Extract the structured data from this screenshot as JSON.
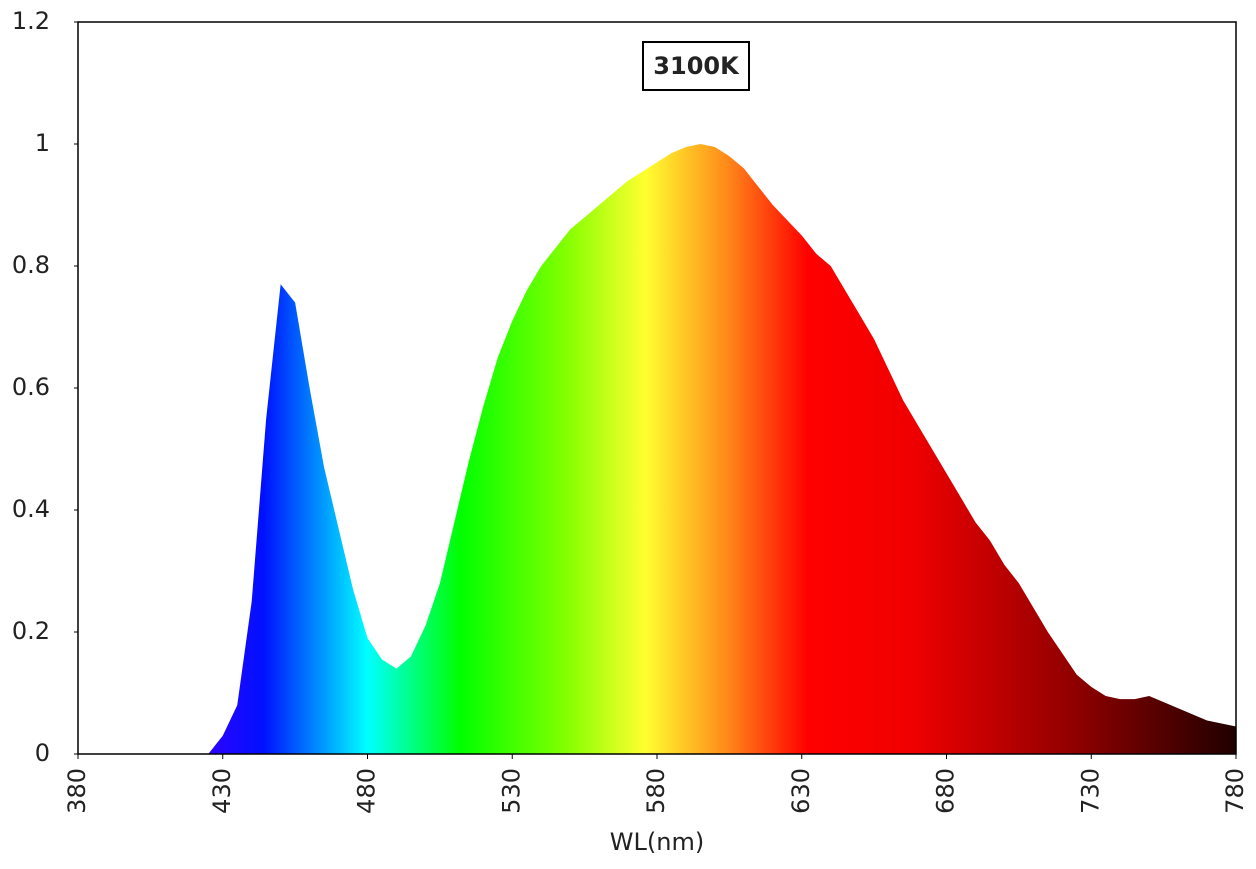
{
  "chart_data": {
    "type": "area",
    "title": "3100K",
    "xlabel": "WL(nm)",
    "x": [
      380,
      385,
      390,
      395,
      400,
      405,
      410,
      415,
      420,
      425,
      430,
      435,
      440,
      445,
      450,
      455,
      460,
      465,
      470,
      475,
      480,
      485,
      490,
      495,
      500,
      505,
      510,
      515,
      520,
      525,
      530,
      535,
      540,
      545,
      550,
      555,
      560,
      565,
      570,
      575,
      580,
      585,
      590,
      595,
      600,
      605,
      610,
      615,
      620,
      625,
      630,
      635,
      640,
      645,
      650,
      655,
      660,
      665,
      670,
      675,
      680,
      685,
      690,
      695,
      700,
      705,
      710,
      715,
      720,
      725,
      730,
      735,
      740,
      745,
      750,
      755,
      760,
      765,
      770,
      775,
      780
    ],
    "values": [
      0,
      0,
      0,
      0,
      0,
      0,
      0,
      0,
      0,
      0,
      0.03,
      0.08,
      0.25,
      0.55,
      0.77,
      0.74,
      0.6,
      0.47,
      0.37,
      0.27,
      0.19,
      0.155,
      0.14,
      0.16,
      0.21,
      0.28,
      0.38,
      0.48,
      0.57,
      0.65,
      0.71,
      0.76,
      0.8,
      0.83,
      0.86,
      0.88,
      0.9,
      0.92,
      0.94,
      0.955,
      0.97,
      0.985,
      0.995,
      1.0,
      0.995,
      0.98,
      0.96,
      0.93,
      0.9,
      0.875,
      0.85,
      0.82,
      0.8,
      0.76,
      0.72,
      0.68,
      0.63,
      0.58,
      0.54,
      0.5,
      0.46,
      0.42,
      0.38,
      0.35,
      0.31,
      0.28,
      0.24,
      0.2,
      0.165,
      0.13,
      0.11,
      0.095,
      0.09,
      0.09,
      0.095,
      0.085,
      0.075,
      0.065,
      0.055,
      0.05,
      0.045
    ],
    "xlim": [
      380,
      780
    ],
    "xticks": [
      380,
      430,
      480,
      530,
      580,
      630,
      680,
      730,
      780
    ],
    "ylim": [
      0,
      1.2
    ],
    "yticks": [
      0,
      0.2,
      0.4,
      0.6,
      0.8,
      1,
      1.2
    ],
    "grid": false
  }
}
